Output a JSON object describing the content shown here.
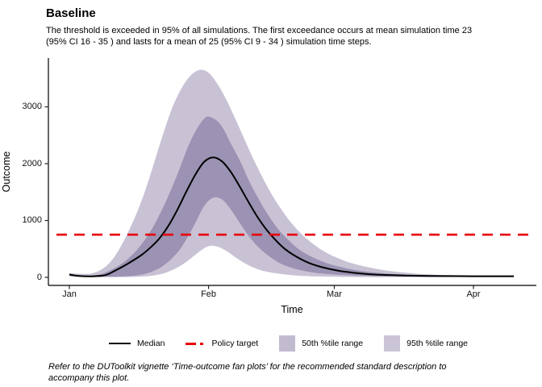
{
  "page": {
    "title": "Baseline",
    "subtitle_lines": [
      "The threshold is exceeded in 95% of all simulations. The first exceedance occurs at mean simulation time 23",
      "(95% CI 16 - 35 ) and lasts for a mean of 25 (95% CI 9 - 34 ) simulation time steps."
    ],
    "footer_lines": [
      "Refer to the DUToolkit vignette ‘Time-outcome fan plots’ for the recommended standard description to",
      "accompany this plot."
    ]
  },
  "chart_data": {
    "type": "area",
    "title": "Baseline",
    "xlabel": "Time",
    "ylabel": "Outcome",
    "x_unit": "days since Jan 1",
    "x_tick_days": [
      0,
      31,
      59,
      90
    ],
    "x_tick_labels": [
      "Jan",
      "Feb",
      "Mar",
      "Apr"
    ],
    "y_ticks": [
      0,
      1000,
      2000,
      3000
    ],
    "y_tick_labels": [
      "0",
      "1000",
      "2000",
      "3000"
    ],
    "xlim_days": [
      -5,
      104
    ],
    "ylim": [
      0,
      3800
    ],
    "grid": false,
    "legend_position": "bottom",
    "policy_target": 750,
    "colors": {
      "median": "#000000",
      "policy_target": "#e8000b",
      "band_50": "#9c92b3",
      "band_95": "#c8c2d4"
    },
    "series": [
      {
        "name": "95th %tile range",
        "type": "band",
        "color": "#c8c2d4",
        "upper": [
          [
            0,
            75
          ],
          [
            3,
            60
          ],
          [
            5,
            70
          ],
          [
            7,
            130
          ],
          [
            9,
            260
          ],
          [
            11,
            480
          ],
          [
            13,
            780
          ],
          [
            15,
            1130
          ],
          [
            17,
            1550
          ],
          [
            19,
            2050
          ],
          [
            21,
            2550
          ],
          [
            23,
            3000
          ],
          [
            25,
            3330
          ],
          [
            27,
            3550
          ],
          [
            29,
            3650
          ],
          [
            31,
            3600
          ],
          [
            33,
            3400
          ],
          [
            35,
            3120
          ],
          [
            37,
            2780
          ],
          [
            39,
            2430
          ],
          [
            41,
            2080
          ],
          [
            43,
            1760
          ],
          [
            45,
            1470
          ],
          [
            47,
            1220
          ],
          [
            49,
            1000
          ],
          [
            51,
            820
          ],
          [
            53,
            670
          ],
          [
            55,
            545
          ],
          [
            57,
            445
          ],
          [
            59,
            365
          ],
          [
            62,
            270
          ],
          [
            65,
            205
          ],
          [
            68,
            155
          ],
          [
            71,
            115
          ],
          [
            74,
            88
          ],
          [
            77,
            68
          ],
          [
            80,
            52
          ],
          [
            84,
            38
          ],
          [
            88,
            30
          ],
          [
            92,
            26
          ],
          [
            96,
            24
          ],
          [
            99,
            24
          ]
        ],
        "lower": [
          [
            0,
            15
          ],
          [
            5,
            6
          ],
          [
            10,
            4
          ],
          [
            14,
            8
          ],
          [
            18,
            25
          ],
          [
            21,
            70
          ],
          [
            23,
            130
          ],
          [
            25,
            215
          ],
          [
            27,
            330
          ],
          [
            29,
            455
          ],
          [
            31,
            550
          ],
          [
            33,
            540
          ],
          [
            35,
            462
          ],
          [
            37,
            352
          ],
          [
            39,
            252
          ],
          [
            41,
            172
          ],
          [
            43,
            118
          ],
          [
            46,
            72
          ],
          [
            49,
            42
          ],
          [
            52,
            26
          ],
          [
            55,
            16
          ],
          [
            58,
            11
          ],
          [
            62,
            7
          ],
          [
            66,
            5
          ],
          [
            70,
            4
          ],
          [
            76,
            3
          ],
          [
            82,
            3
          ],
          [
            90,
            3
          ],
          [
            99,
            3
          ]
        ]
      },
      {
        "name": "50th %tile range",
        "type": "band",
        "color": "#9c92b3",
        "upper": [
          [
            0,
            60
          ],
          [
            3,
            35
          ],
          [
            6,
            35
          ],
          [
            9,
            120
          ],
          [
            12,
            260
          ],
          [
            15,
            480
          ],
          [
            18,
            800
          ],
          [
            21,
            1250
          ],
          [
            24,
            1800
          ],
          [
            27,
            2400
          ],
          [
            30,
            2790
          ],
          [
            32,
            2800
          ],
          [
            34,
            2650
          ],
          [
            36,
            2350
          ],
          [
            38,
            2050
          ],
          [
            40,
            1700
          ],
          [
            42,
            1400
          ],
          [
            44,
            1130
          ],
          [
            46,
            900
          ],
          [
            48,
            720
          ],
          [
            51,
            500
          ],
          [
            54,
            360
          ],
          [
            57,
            260
          ],
          [
            60,
            190
          ],
          [
            64,
            125
          ],
          [
            68,
            85
          ],
          [
            72,
            60
          ],
          [
            76,
            45
          ],
          [
            80,
            35
          ],
          [
            85,
            28
          ],
          [
            90,
            25
          ],
          [
            95,
            25
          ],
          [
            99,
            25
          ]
        ],
        "lower": [
          [
            0,
            30
          ],
          [
            4,
            12
          ],
          [
            8,
            8
          ],
          [
            12,
            15
          ],
          [
            15,
            35
          ],
          [
            18,
            90
          ],
          [
            21,
            210
          ],
          [
            24,
            430
          ],
          [
            26,
            660
          ],
          [
            28,
            950
          ],
          [
            30,
            1250
          ],
          [
            32,
            1400
          ],
          [
            34,
            1370
          ],
          [
            36,
            1190
          ],
          [
            38,
            950
          ],
          [
            40,
            720
          ],
          [
            42,
            540
          ],
          [
            44,
            400
          ],
          [
            46,
            290
          ],
          [
            48,
            210
          ],
          [
            51,
            135
          ],
          [
            54,
            90
          ],
          [
            57,
            62
          ],
          [
            60,
            45
          ],
          [
            65,
            28
          ],
          [
            70,
            20
          ],
          [
            75,
            15
          ],
          [
            80,
            12
          ],
          [
            85,
            11
          ],
          [
            90,
            10
          ],
          [
            95,
            10
          ],
          [
            99,
            10
          ]
        ]
      },
      {
        "name": "Median",
        "type": "line",
        "color": "#000000",
        "points": [
          [
            0,
            50
          ],
          [
            2,
            25
          ],
          [
            5,
            18
          ],
          [
            8,
            40
          ],
          [
            10,
            110
          ],
          [
            13,
            240
          ],
          [
            16,
            390
          ],
          [
            18,
            520
          ],
          [
            20,
            680
          ],
          [
            22,
            900
          ],
          [
            24,
            1180
          ],
          [
            26,
            1500
          ],
          [
            28,
            1800
          ],
          [
            30,
            2030
          ],
          [
            32,
            2110
          ],
          [
            34,
            2040
          ],
          [
            36,
            1850
          ],
          [
            38,
            1590
          ],
          [
            40,
            1310
          ],
          [
            42,
            1050
          ],
          [
            44,
            830
          ],
          [
            46,
            650
          ],
          [
            48,
            500
          ],
          [
            50,
            390
          ],
          [
            53,
            265
          ],
          [
            56,
            185
          ],
          [
            60,
            115
          ],
          [
            64,
            75
          ],
          [
            68,
            50
          ],
          [
            72,
            38
          ],
          [
            76,
            30
          ],
          [
            80,
            26
          ],
          [
            85,
            22
          ],
          [
            90,
            20
          ],
          [
            95,
            20
          ],
          [
            99,
            20
          ]
        ]
      },
      {
        "name": "Policy target",
        "type": "hline",
        "color": "#e8000b",
        "value": 750,
        "dashed": true
      }
    ],
    "legend": [
      {
        "label": "Median",
        "swatch": "line",
        "color": "#000000"
      },
      {
        "label": "Policy target",
        "swatch": "dashed-line",
        "color": "#e8000b"
      },
      {
        "label": "50th %tile range",
        "swatch": "rect",
        "color": "#c2bbd0"
      },
      {
        "label": "95th %tile range",
        "swatch": "rect",
        "color": "#cac4d6"
      }
    ]
  }
}
